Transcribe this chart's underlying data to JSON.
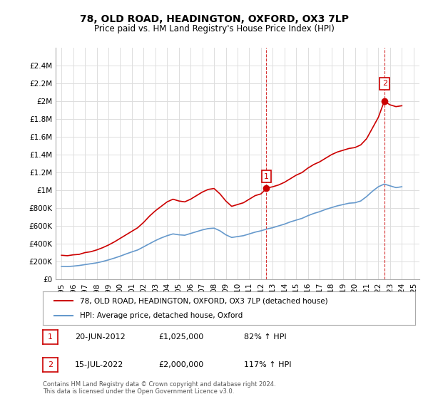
{
  "title": "78, OLD ROAD, HEADINGTON, OXFORD, OX3 7LP",
  "subtitle": "Price paid vs. HM Land Registry's House Price Index (HPI)",
  "legend_line1": "78, OLD ROAD, HEADINGTON, OXFORD, OX3 7LP (detached house)",
  "legend_line2": "HPI: Average price, detached house, Oxford",
  "footnote1": "Contains HM Land Registry data © Crown copyright and database right 2024.",
  "footnote2": "This data is licensed under the Open Government Licence v3.0.",
  "sale1_label": "1",
  "sale1_date": "20-JUN-2012",
  "sale1_price": "£1,025,000",
  "sale1_hpi": "82% ↑ HPI",
  "sale1_year": 2012.46,
  "sale1_value": 1025000,
  "sale2_label": "2",
  "sale2_date": "15-JUL-2022",
  "sale2_price": "£2,000,000",
  "sale2_hpi": "117% ↑ HPI",
  "sale2_year": 2022.54,
  "sale2_value": 2000000,
  "ylim": [
    0,
    2600000
  ],
  "xlim": [
    1994.5,
    2025.5
  ],
  "yticks": [
    0,
    200000,
    400000,
    600000,
    800000,
    1000000,
    1200000,
    1400000,
    1600000,
    1800000,
    2000000,
    2200000,
    2400000
  ],
  "ytick_labels": [
    "£0",
    "£200K",
    "£400K",
    "£600K",
    "£800K",
    "£1M",
    "£1.2M",
    "£1.4M",
    "£1.6M",
    "£1.8M",
    "£2M",
    "£2.2M",
    "£2.4M"
  ],
  "red_line_color": "#cc0000",
  "blue_line_color": "#6699cc",
  "sale_marker_color": "#cc0000",
  "dashed_line_color": "#cc0000",
  "background_color": "#ffffff",
  "grid_color": "#dddddd",
  "red_x": [
    1995.0,
    1995.5,
    1996.0,
    1996.5,
    1997.0,
    1997.5,
    1998.0,
    1998.5,
    1999.0,
    1999.5,
    2000.0,
    2000.5,
    2001.0,
    2001.5,
    2002.0,
    2002.5,
    2003.0,
    2003.5,
    2004.0,
    2004.5,
    2005.0,
    2005.5,
    2006.0,
    2006.5,
    2007.0,
    2007.5,
    2008.0,
    2008.5,
    2009.0,
    2009.5,
    2010.0,
    2010.5,
    2011.0,
    2011.5,
    2012.0,
    2012.5,
    2013.0,
    2013.5,
    2014.0,
    2014.5,
    2015.0,
    2015.5,
    2016.0,
    2016.5,
    2017.0,
    2017.5,
    2018.0,
    2018.5,
    2019.0,
    2019.5,
    2020.0,
    2020.5,
    2021.0,
    2021.5,
    2022.0,
    2022.5,
    2023.0,
    2023.5,
    2024.0
  ],
  "red_y": [
    270000,
    265000,
    275000,
    280000,
    300000,
    310000,
    330000,
    355000,
    385000,
    420000,
    460000,
    500000,
    540000,
    580000,
    640000,
    710000,
    770000,
    820000,
    870000,
    900000,
    880000,
    870000,
    900000,
    940000,
    980000,
    1010000,
    1020000,
    960000,
    880000,
    820000,
    840000,
    860000,
    900000,
    940000,
    960000,
    1025000,
    1040000,
    1060000,
    1090000,
    1130000,
    1170000,
    1200000,
    1250000,
    1290000,
    1320000,
    1360000,
    1400000,
    1430000,
    1450000,
    1470000,
    1480000,
    1510000,
    1580000,
    1700000,
    1820000,
    2000000,
    1960000,
    1940000,
    1950000
  ],
  "blue_x": [
    1995.0,
    1995.5,
    1996.0,
    1996.5,
    1997.0,
    1997.5,
    1998.0,
    1998.5,
    1999.0,
    1999.5,
    2000.0,
    2000.5,
    2001.0,
    2001.5,
    2002.0,
    2002.5,
    2003.0,
    2003.5,
    2004.0,
    2004.5,
    2005.0,
    2005.5,
    2006.0,
    2006.5,
    2007.0,
    2007.5,
    2008.0,
    2008.5,
    2009.0,
    2009.5,
    2010.0,
    2010.5,
    2011.0,
    2011.5,
    2012.0,
    2012.5,
    2013.0,
    2013.5,
    2014.0,
    2014.5,
    2015.0,
    2015.5,
    2016.0,
    2016.5,
    2017.0,
    2017.5,
    2018.0,
    2018.5,
    2019.0,
    2019.5,
    2020.0,
    2020.5,
    2021.0,
    2021.5,
    2022.0,
    2022.5,
    2023.0,
    2023.5,
    2024.0
  ],
  "blue_y": [
    145000,
    143000,
    148000,
    155000,
    165000,
    175000,
    185000,
    200000,
    218000,
    238000,
    260000,
    285000,
    308000,
    330000,
    365000,
    400000,
    435000,
    465000,
    490000,
    510000,
    500000,
    495000,
    515000,
    535000,
    555000,
    570000,
    575000,
    545000,
    500000,
    470000,
    480000,
    490000,
    510000,
    530000,
    545000,
    565000,
    580000,
    600000,
    620000,
    645000,
    665000,
    685000,
    715000,
    740000,
    760000,
    785000,
    805000,
    825000,
    840000,
    855000,
    860000,
    880000,
    930000,
    990000,
    1040000,
    1070000,
    1050000,
    1030000,
    1040000
  ],
  "xtick_years": [
    1995,
    1996,
    1997,
    1998,
    1999,
    2000,
    2001,
    2002,
    2003,
    2004,
    2005,
    2006,
    2007,
    2008,
    2009,
    2010,
    2011,
    2012,
    2013,
    2014,
    2015,
    2016,
    2017,
    2018,
    2019,
    2020,
    2021,
    2022,
    2023,
    2024,
    2025
  ]
}
